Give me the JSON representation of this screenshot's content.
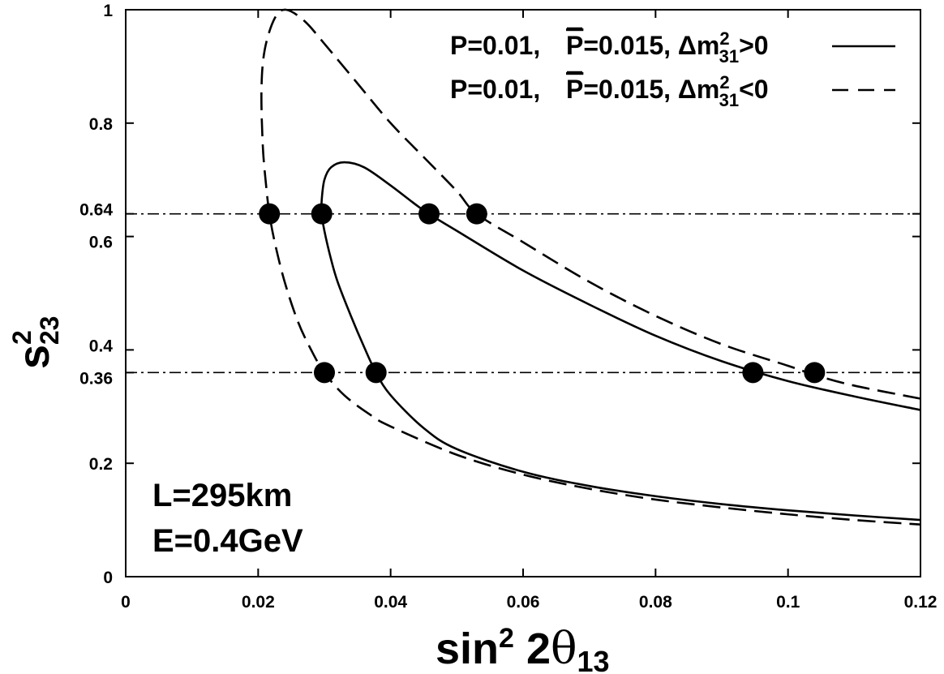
{
  "chart_data": {
    "type": "line",
    "xlabel": {
      "main": "sin",
      "sup": "2",
      "mid": " 2",
      "theta": "θ",
      "sub": "13"
    },
    "ylabel": {
      "main": "s",
      "sup": "2",
      "sub": "23"
    },
    "xlim": [
      0,
      0.12
    ],
    "ylim": [
      0,
      1
    ],
    "x_ticks": [
      {
        "v": 0,
        "label": "0"
      },
      {
        "v": 0.02,
        "label": "0.02"
      },
      {
        "v": 0.04,
        "label": "0.04"
      },
      {
        "v": 0.06,
        "label": "0.06"
      },
      {
        "v": 0.08,
        "label": "0.08"
      },
      {
        "v": 0.1,
        "label": "0.1"
      },
      {
        "v": 0.12,
        "label": "0.12"
      }
    ],
    "y_ticks": [
      {
        "v": 0,
        "label": "0"
      },
      {
        "v": 0.2,
        "label": "0.2"
      },
      {
        "v": 0.36,
        "label": "0.36"
      },
      {
        "v": 0.4,
        "label": "0.4"
      },
      {
        "v": 0.6,
        "label": "0.6"
      },
      {
        "v": 0.64,
        "label": "0.64"
      },
      {
        "v": 0.8,
        "label": "0.8"
      },
      {
        "v": 1,
        "label": "1"
      }
    ],
    "grid": false,
    "legend_position": "top-right",
    "series": [
      {
        "name": "P=0.01, P̄=0.015, Δm²31>0",
        "legend_parts": {
          "p": "P=0.01,",
          "pbar": "P",
          "pbar_rest": "=0.015, ",
          "dm": "Δm",
          "sup": "2",
          "sub": "31",
          "rel": ">0"
        },
        "style": "solid",
        "points": [
          [
            0.12,
            0.294
          ],
          [
            0.11,
            0.318
          ],
          [
            0.1,
            0.345
          ],
          [
            0.09,
            0.38
          ],
          [
            0.08,
            0.425
          ],
          [
            0.07,
            0.48
          ],
          [
            0.06,
            0.54
          ],
          [
            0.05,
            0.61
          ],
          [
            0.045,
            0.646
          ],
          [
            0.04,
            0.69
          ],
          [
            0.036,
            0.722
          ],
          [
            0.033,
            0.731
          ],
          [
            0.031,
            0.722
          ],
          [
            0.03,
            0.7
          ],
          [
            0.0296,
            0.665
          ],
          [
            0.0296,
            0.64
          ],
          [
            0.03,
            0.61
          ],
          [
            0.031,
            0.56
          ],
          [
            0.032,
            0.52
          ],
          [
            0.034,
            0.46
          ],
          [
            0.036,
            0.405
          ],
          [
            0.0378,
            0.36
          ],
          [
            0.04,
            0.32
          ],
          [
            0.045,
            0.262
          ],
          [
            0.05,
            0.225
          ],
          [
            0.06,
            0.185
          ],
          [
            0.07,
            0.16
          ],
          [
            0.08,
            0.142
          ],
          [
            0.09,
            0.128
          ],
          [
            0.1,
            0.117
          ],
          [
            0.11,
            0.108
          ],
          [
            0.12,
            0.1
          ]
        ]
      },
      {
        "name": "P=0.01, P̄=0.015, Δm²31<0",
        "legend_parts": {
          "p": "P=0.01,",
          "pbar": "P",
          "pbar_rest": "=0.015, ",
          "dm": "Δm",
          "sup": "2",
          "sub": "31",
          "rel": "<0"
        },
        "style": "dashed",
        "points": [
          [
            0.12,
            0.314
          ],
          [
            0.11,
            0.337
          ],
          [
            0.104,
            0.356
          ],
          [
            0.1,
            0.372
          ],
          [
            0.09,
            0.41
          ],
          [
            0.08,
            0.46
          ],
          [
            0.07,
            0.52
          ],
          [
            0.06,
            0.59
          ],
          [
            0.053,
            0.64
          ],
          [
            0.05,
            0.68
          ],
          [
            0.045,
            0.74
          ],
          [
            0.04,
            0.8
          ],
          [
            0.035,
            0.87
          ],
          [
            0.03,
            0.94
          ],
          [
            0.027,
            0.98
          ],
          [
            0.0242,
            1.0
          ],
          [
            0.0225,
            0.985
          ],
          [
            0.021,
            0.93
          ],
          [
            0.0205,
            0.86
          ],
          [
            0.0207,
            0.76
          ],
          [
            0.0212,
            0.69
          ],
          [
            0.0217,
            0.64
          ],
          [
            0.0225,
            0.59
          ],
          [
            0.024,
            0.52
          ],
          [
            0.026,
            0.45
          ],
          [
            0.028,
            0.4
          ],
          [
            0.03,
            0.36
          ],
          [
            0.033,
            0.32
          ],
          [
            0.037,
            0.285
          ],
          [
            0.04,
            0.265
          ],
          [
            0.05,
            0.215
          ],
          [
            0.06,
            0.18
          ],
          [
            0.07,
            0.155
          ],
          [
            0.08,
            0.136
          ],
          [
            0.09,
            0.122
          ],
          [
            0.1,
            0.11
          ],
          [
            0.11,
            0.1
          ],
          [
            0.12,
            0.092
          ]
        ]
      }
    ],
    "reference_lines": [
      {
        "y": 0.64,
        "style": "dash-dot"
      },
      {
        "y": 0.36,
        "style": "dash-dot"
      }
    ],
    "markers": [
      {
        "x": 0.0217,
        "y": 0.64
      },
      {
        "x": 0.0296,
        "y": 0.64
      },
      {
        "x": 0.0458,
        "y": 0.64
      },
      {
        "x": 0.053,
        "y": 0.64
      },
      {
        "x": 0.03,
        "y": 0.36
      },
      {
        "x": 0.0378,
        "y": 0.36
      },
      {
        "x": 0.0947,
        "y": 0.36
      },
      {
        "x": 0.104,
        "y": 0.36
      }
    ],
    "annotation": {
      "line1": "L=295km",
      "line2": "E=0.4GeV"
    }
  }
}
